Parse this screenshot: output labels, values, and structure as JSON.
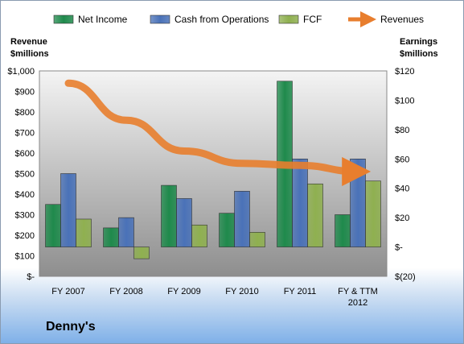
{
  "chart_data": {
    "type": "bar",
    "categories": [
      "FY 2007",
      "FY 2008",
      "FY 2009",
      "FY 2010",
      "FY 2011",
      "FY & TTM|2012"
    ],
    "company": "Denny's",
    "y_left": {
      "label_lines": [
        "Revenue",
        "$millions"
      ],
      "range": [
        0,
        1000
      ],
      "ticks": [
        0,
        100,
        200,
        300,
        400,
        500,
        600,
        700,
        800,
        900,
        1000
      ],
      "tick_labels": [
        "$-",
        "$100",
        "$200",
        "$300",
        "$400",
        "$500",
        "$600",
        "$700",
        "$800",
        "$900",
        "$1,000"
      ]
    },
    "y_right": {
      "label_lines": [
        "Earnings",
        "$millions"
      ],
      "range": [
        -20,
        120
      ],
      "ticks": [
        -20,
        0,
        20,
        40,
        60,
        80,
        100,
        120
      ],
      "tick_labels": [
        "$(20)",
        "$-",
        "$20",
        "$40",
        "$60",
        "$80",
        "$100",
        "$120"
      ]
    },
    "series": [
      {
        "name": "Net Income",
        "axis": "right",
        "color": "#1f8a4c",
        "values": [
          29,
          13,
          42,
          23,
          113,
          22
        ]
      },
      {
        "name": "Cash from Operations",
        "axis": "right",
        "color": "#4a72b8",
        "values": [
          50,
          20,
          33,
          38,
          60,
          60
        ]
      },
      {
        "name": "FCF",
        "axis": "right",
        "color": "#8fb050",
        "values": [
          19,
          -8,
          15,
          10,
          43,
          45
        ]
      },
      {
        "name": "Revenues",
        "axis": "left",
        "type": "line",
        "color": "#e87e2e",
        "values": [
          940,
          760,
          610,
          550,
          540,
          510
        ]
      }
    ],
    "legend_position": "top",
    "grid": false
  }
}
